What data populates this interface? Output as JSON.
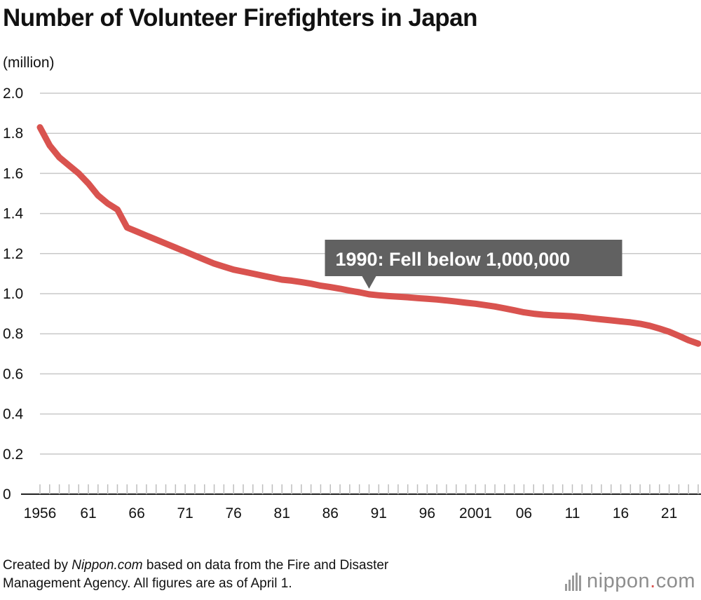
{
  "title": "Number of Volunteer Firefighters in Japan",
  "unit_label": "(million)",
  "footer": {
    "prefix": "Created by ",
    "source_name": "Nippon.com",
    "line1_rest": " based on data from the Fire and Disaster",
    "line2": "Management Agency. All figures are as of April 1."
  },
  "brand": {
    "name": "nippon",
    "dot": ".",
    "suffix": "com"
  },
  "chart_data": {
    "type": "line",
    "title": "Number of Volunteer Firefighters in Japan",
    "ylabel": "(million)",
    "xlabel": "",
    "ylim": [
      0,
      2.0
    ],
    "xlim": [
      1956,
      2024
    ],
    "yticks": [
      0,
      0.2,
      0.4,
      0.6,
      0.8,
      1.0,
      1.2,
      1.4,
      1.6,
      1.8,
      2.0
    ],
    "ytick_labels": [
      "0",
      "0.2",
      "0.4",
      "0.6",
      "0.8",
      "1.0",
      "1.2",
      "1.4",
      "1.6",
      "1.8",
      "2.0"
    ],
    "xticks": [
      1956,
      1961,
      1966,
      1971,
      1976,
      1981,
      1986,
      1991,
      1996,
      2001,
      2006,
      2011,
      2016,
      2021
    ],
    "xtick_labels": [
      "1956",
      "61",
      "66",
      "71",
      "76",
      "81",
      "86",
      "91",
      "96",
      "2001",
      "06",
      "11",
      "16",
      "21"
    ],
    "grid": true,
    "line_color": "#d9534f",
    "series": [
      {
        "x": [
          1956,
          1957,
          1958,
          1959,
          1960,
          1961,
          1962,
          1963,
          1964,
          1965,
          1966,
          1967,
          1968,
          1969,
          1970,
          1971,
          1972,
          1973,
          1974,
          1975,
          1976,
          1977,
          1978,
          1979,
          1980,
          1981,
          1982,
          1983,
          1984,
          1985,
          1986,
          1987,
          1988,
          1989,
          1990,
          1991,
          1992,
          1993,
          1994,
          1995,
          1996,
          1997,
          1998,
          1999,
          2000,
          2001,
          2002,
          2003,
          2004,
          2005,
          2006,
          2007,
          2008,
          2009,
          2010,
          2011,
          2012,
          2013,
          2014,
          2015,
          2016,
          2017,
          2018,
          2019,
          2020,
          2021,
          2022,
          2023,
          2024
        ],
        "values": [
          1.83,
          1.74,
          1.68,
          1.64,
          1.6,
          1.55,
          1.49,
          1.45,
          1.42,
          1.33,
          1.31,
          1.29,
          1.27,
          1.25,
          1.23,
          1.21,
          1.19,
          1.17,
          1.15,
          1.135,
          1.12,
          1.11,
          1.1,
          1.09,
          1.08,
          1.07,
          1.065,
          1.058,
          1.05,
          1.04,
          1.033,
          1.025,
          1.015,
          1.007,
          0.997,
          0.992,
          0.988,
          0.985,
          0.982,
          0.978,
          0.975,
          0.971,
          0.966,
          0.961,
          0.955,
          0.95,
          0.943,
          0.936,
          0.927,
          0.917,
          0.907,
          0.9,
          0.895,
          0.892,
          0.89,
          0.887,
          0.883,
          0.877,
          0.872,
          0.867,
          0.862,
          0.857,
          0.85,
          0.84,
          0.826,
          0.81,
          0.79,
          0.768,
          0.751
        ]
      }
    ],
    "annotations": [
      {
        "text": "1990: Fell below 1,000,000",
        "x": 1990,
        "y": 0.997
      }
    ]
  }
}
